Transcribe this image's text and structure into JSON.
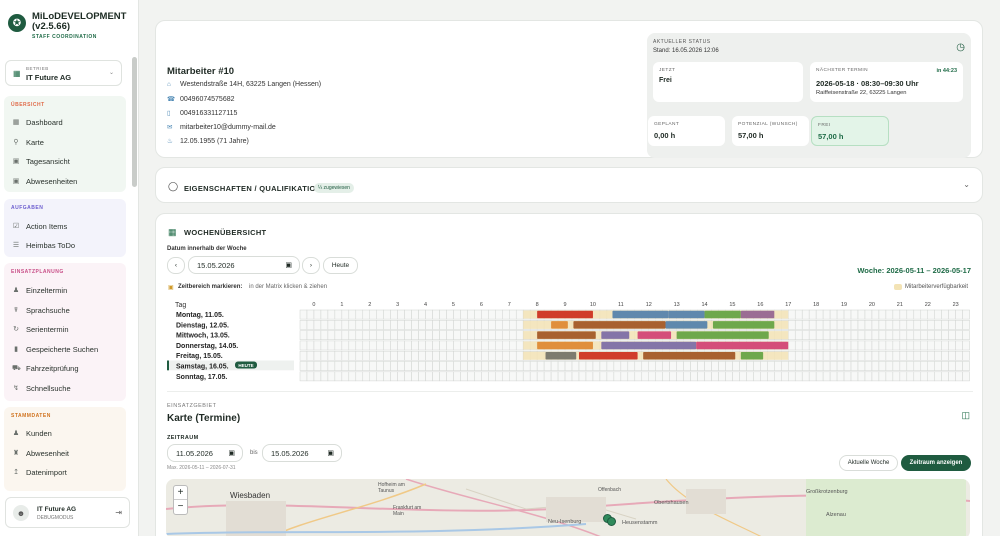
{
  "brand": {
    "title": "MiLoDEVELOPMENT (v2.5.66)",
    "subtitle": "STAFF COORDINATION"
  },
  "tenant": {
    "caption": "BETRIEB",
    "value": "IT Future AG"
  },
  "nav": [
    {
      "group": "ÜBERSICHT",
      "items": [
        "Dashboard",
        "Karte",
        "Tagesansicht",
        "Abwesenheiten"
      ],
      "color": "#e06b4a",
      "bg": "#f1f7f2"
    },
    {
      "group": "AUFGABEN",
      "items": [
        "Action Items",
        "Heimbas ToDo"
      ],
      "color": "#6c5ecf",
      "bg": "#f3f3fb"
    },
    {
      "group": "EINSATZPLANUNG",
      "items": [
        "Einzeltermin",
        "Sprachsuche",
        "Serientermin",
        "Gespeicherte Suchen",
        "Fahrzeitprüfung",
        "Schnellsuche"
      ],
      "color": "#c84e87",
      "bg": "#fbf3f7"
    },
    {
      "group": "STAMMDATEN",
      "items": [
        "Kunden",
        "Abwesenheit",
        "Datenimport"
      ],
      "color": "#d0731f",
      "bg": "#fbf6ef"
    }
  ],
  "user": {
    "name": "IT Future AG",
    "role": "DEBUGMODUS"
  },
  "employee": {
    "name": "Mitarbeiter #10",
    "address": "Westendstraße 14H, 63225 Langen (Hessen)",
    "phone1": "00496074575682",
    "phone2": "004916331127115",
    "email": "mitarbeiter10@dummy-mail.de",
    "birthday": "12.05.1955 (71 Jahre)"
  },
  "status": {
    "caption": "AKTUELLER STATUS",
    "stand": "Stand: 16.05.2026 12:06",
    "now_caption": "JETZT",
    "now_value": "Frei",
    "next_caption": "NÄCHSTER TERMIN",
    "next_in": "in 44:23",
    "next_value": "2026-05-18 · 08:30–09:30 Uhr",
    "next_address": "Raiffeisenstraße 22, 63225 Langen",
    "geplant_caption": "GEPLANT",
    "geplant_value": "0,00 h",
    "potenzial_caption": "POTENZIAL (WUNSCH)",
    "potenzial_value": "57,00 h",
    "frei_caption": "FREI",
    "frei_value": "57,00 h"
  },
  "qualifications": {
    "title": "EIGENSCHAFTEN / QUALIFIKATIONEN",
    "badge": "¼ zugewiesen"
  },
  "week": {
    "title": "WOCHENÜBERSICHT",
    "date_label": "Datum innerhalb der Woche",
    "date_value": "15.05.2026",
    "today_button": "Heute",
    "range": "Woche: 2026-05-11 – 2026-05-17",
    "hint_bold": "Zeitbereich markieren:",
    "hint": "in der Matrix klicken & ziehen",
    "legend": "Mitarbeiterverfügbarkeit",
    "tag_label": "Tag",
    "today_badge": "HEUTE",
    "days": [
      "Montag, 11.05.",
      "Dienstag, 12.05.",
      "Mittwoch, 13.05.",
      "Donnerstag, 14.05.",
      "Freitag, 15.05.",
      "Samstag, 16.05.",
      "Sonntag, 17.05."
    ],
    "hours": [
      "0",
      "1",
      "2",
      "3",
      "4",
      "5",
      "6",
      "7",
      "8",
      "9",
      "10",
      "11",
      "12",
      "13",
      "14",
      "15",
      "16",
      "17",
      "18",
      "19",
      "20",
      "21",
      "22",
      "23"
    ]
  },
  "karte": {
    "caption": "EINSATZGEBIET",
    "title": "Karte (Termine)",
    "range_label": "ZEITRAUM",
    "from": "11.05.2026",
    "bis": "bis",
    "to": "15.05.2026",
    "max": "Max. 2026-05-11 – 2026-07-31",
    "btn_week": "Aktuelle Woche",
    "btn_show": "Zeitraum anzeigen",
    "places": [
      "Wiesbaden",
      "Hofheim am Taunus",
      "Frankfurt am Main",
      "Offenbach",
      "Neu-Isenburg",
      "Heusenstamm",
      "Obertshausen",
      "Großkrotzenburg",
      "Alzenau"
    ]
  }
}
